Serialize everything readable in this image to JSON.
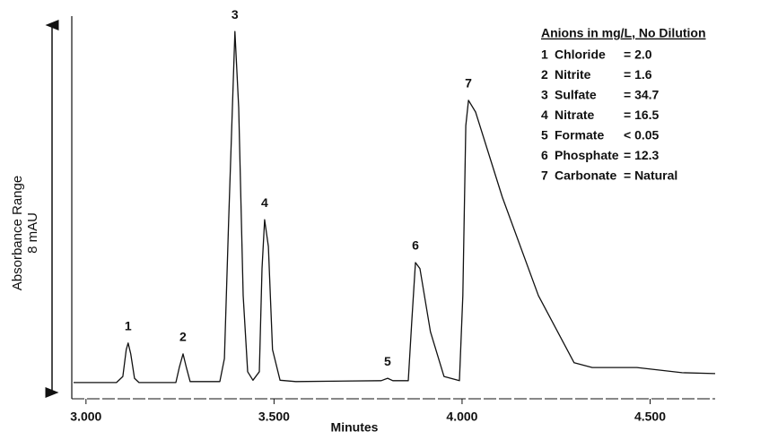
{
  "chart_data": {
    "type": "line",
    "x_label": "Minutes",
    "y_label": "Absorbance Range",
    "y_range_label": "8 mAU",
    "xlim": [
      2.967,
      4.673
    ],
    "ylim": [
      0,
      8
    ],
    "xticks": [
      {
        "value": 3,
        "label": "3.000"
      },
      {
        "value": 3.5,
        "label": "3.500"
      },
      {
        "value": 4,
        "label": "4.000"
      },
      {
        "value": 4.5,
        "label": "4.500"
      }
    ],
    "x": [
      2.967,
      3.081,
      3.098,
      3.107,
      3.112,
      3.119,
      3.129,
      3.141,
      3.239,
      3.248,
      3.258,
      3.267,
      3.277,
      3.356,
      3.368,
      3.379,
      3.396,
      3.406,
      3.418,
      3.43,
      3.444,
      3.461,
      3.468,
      3.475,
      3.485,
      3.496,
      3.516,
      3.558,
      3.785,
      3.802,
      3.816,
      3.857,
      3.866,
      3.876,
      3.888,
      3.916,
      3.952,
      3.993,
      4.002,
      4.01,
      4.017,
      4.036,
      4.107,
      4.203,
      4.298,
      4.346,
      4.465,
      4.585,
      4.673
    ],
    "series": [
      {
        "color": "#111111",
        "values": [
          0.25,
          0.25,
          0.38,
          0.95,
          1.09,
          0.86,
          0.34,
          0.25,
          0.25,
          0.57,
          0.86,
          0.57,
          0.27,
          0.27,
          0.76,
          3.62,
          7.71,
          6.1,
          2.1,
          0.48,
          0.3,
          0.48,
          2.67,
          3.71,
          3.14,
          0.95,
          0.3,
          0.27,
          0.29,
          0.34,
          0.29,
          0.29,
          1.52,
          2.8,
          2.67,
          1.33,
          0.38,
          0.29,
          2.1,
          5.71,
          6.25,
          6.0,
          4.19,
          2.1,
          0.67,
          0.57,
          0.57,
          0.46,
          0.44
        ]
      }
    ],
    "annotations": [
      {
        "text": "1",
        "x": 3.112
      },
      {
        "text": "2",
        "x": 3.258
      },
      {
        "text": "3",
        "x": 3.396
      },
      {
        "text": "4",
        "x": 3.475
      },
      {
        "text": "5",
        "x": 3.802
      },
      {
        "text": "6",
        "x": 3.876
      },
      {
        "text": "7",
        "x": 4.017
      }
    ],
    "legend_table": {
      "title": "Anions in mg/L, No Dilution",
      "rows": [
        [
          "1",
          "Chloride",
          "=  2.0"
        ],
        [
          "2",
          "Nitrite",
          "=  1.6"
        ],
        [
          "3",
          "Sulfate",
          "= 34.7"
        ],
        [
          "4",
          "Nitrate",
          "= 16.5"
        ],
        [
          "5",
          "Formate",
          "<  0.05"
        ],
        [
          "6",
          "Phosphate",
          "= 12.3"
        ],
        [
          "7",
          "Carbonate",
          "= Natural"
        ]
      ]
    }
  }
}
